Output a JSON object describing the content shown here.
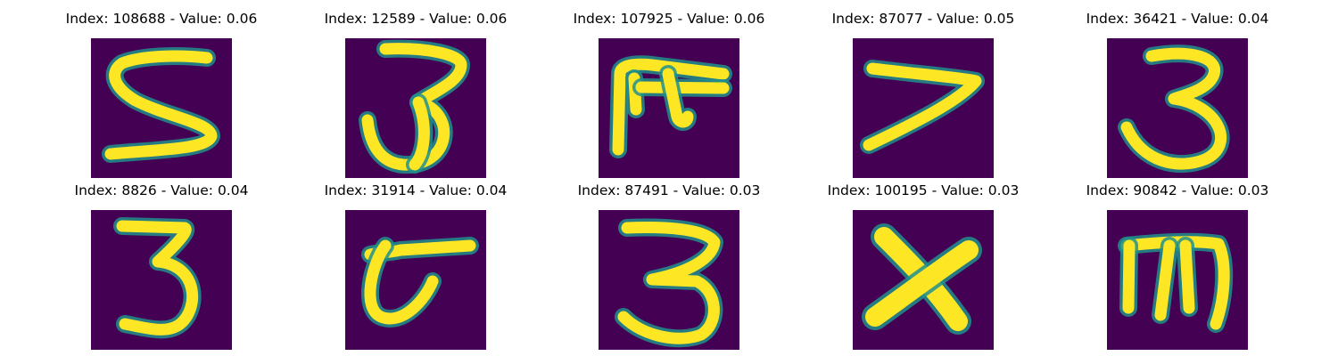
{
  "panels": [
    {
      "title": "Index: 108688 - Value: 0.06",
      "glyph": "five"
    },
    {
      "title": "Index: 12589 - Value: 0.06",
      "glyph": "three-hook"
    },
    {
      "title": "Index: 107925 - Value: 0.06",
      "glyph": "rho-shape"
    },
    {
      "title": "Index: 87077 - Value: 0.05",
      "glyph": "seven"
    },
    {
      "title": "Index: 36421 - Value: 0.04",
      "glyph": "three"
    },
    {
      "title": "Index: 8826 - Value: 0.04",
      "glyph": "three-flat"
    },
    {
      "title": "Index: 31914 - Value: 0.04",
      "glyph": "curl-shape"
    },
    {
      "title": "Index: 87491 - Value: 0.03",
      "glyph": "three-bold"
    },
    {
      "title": "Index: 100195 - Value: 0.03",
      "glyph": "x-shape"
    },
    {
      "title": "Index: 90842 - Value: 0.03",
      "glyph": "m-shape"
    }
  ],
  "colors": {
    "background": "#440154",
    "foreground": "#fde725",
    "edge": "#21918c"
  }
}
